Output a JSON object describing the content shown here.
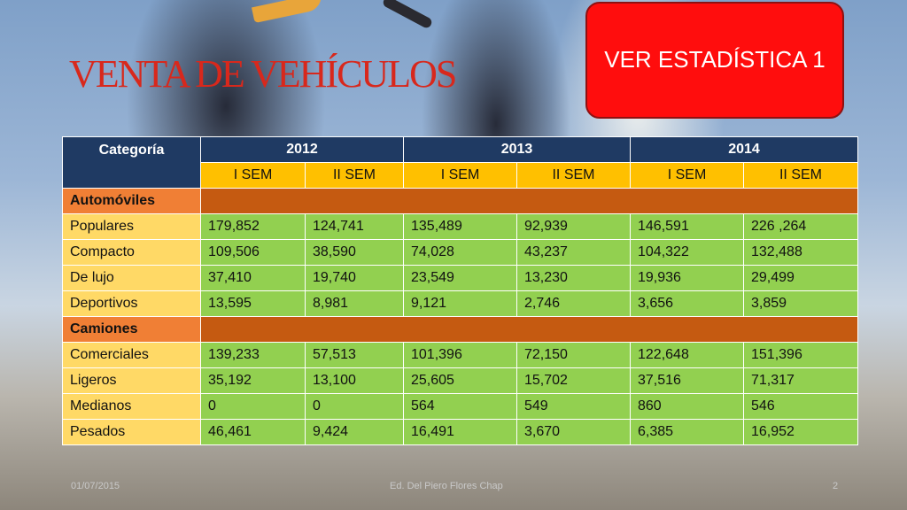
{
  "slide": {
    "title": "VENTA DE VEHÍCULOS",
    "button_label": "VER ESTADÍSTICA 1"
  },
  "table": {
    "corner_header": "Categoría",
    "years": [
      "2012",
      "2013",
      "2014"
    ],
    "semesters": [
      "I SEM",
      "II SEM",
      "I SEM",
      "II SEM",
      "I SEM",
      "II SEM"
    ],
    "groups": [
      {
        "name": "Automóviles",
        "rows": [
          {
            "label": "Populares",
            "values": [
              "179,852",
              "124,741",
              "135,489",
              "92,939",
              "146,591",
              "226 ,264"
            ]
          },
          {
            "label": "Compacto",
            "values": [
              "109,506",
              "38,590",
              "74,028",
              "43,237",
              "104,322",
              "132,488"
            ]
          },
          {
            "label": "De lujo",
            "values": [
              "37,410",
              "19,740",
              "23,549",
              "13,230",
              "19,936",
              "29,499"
            ]
          },
          {
            "label": "Deportivos",
            "values": [
              "13,595",
              "8,981",
              "9,121",
              "2,746",
              "3,656",
              "3,859"
            ]
          }
        ]
      },
      {
        "name": "Camiones",
        "rows": [
          {
            "label": "Comerciales",
            "values": [
              "139,233",
              "57,513",
              "101,396",
              "72,150",
              "122,648",
              "151,396"
            ]
          },
          {
            "label": "Ligeros",
            "values": [
              "35,192",
              "13,100",
              "25,605",
              "15,702",
              "37,516",
              "71,317"
            ]
          },
          {
            "label": "Medianos",
            "values": [
              "0",
              "0",
              "564",
              "549",
              "860",
              "546"
            ]
          },
          {
            "label": "Pesados",
            "values": [
              "46,461",
              "9,424",
              "16,491",
              "3,670",
              "6,385",
              "16,952"
            ]
          }
        ]
      }
    ]
  },
  "footer": {
    "date": "01/07/2015",
    "author": "Ed. Del Piero Flores Chap",
    "page": "2"
  },
  "colors": {
    "title": "#d8281c",
    "button": "#ff0d0d",
    "header_dark": "#1f3a63",
    "header_gold": "#ffc000",
    "category": "#f07f35",
    "category_fill": "#c55a11",
    "row_label": "#ffd966",
    "value_cell": "#92d050"
  }
}
